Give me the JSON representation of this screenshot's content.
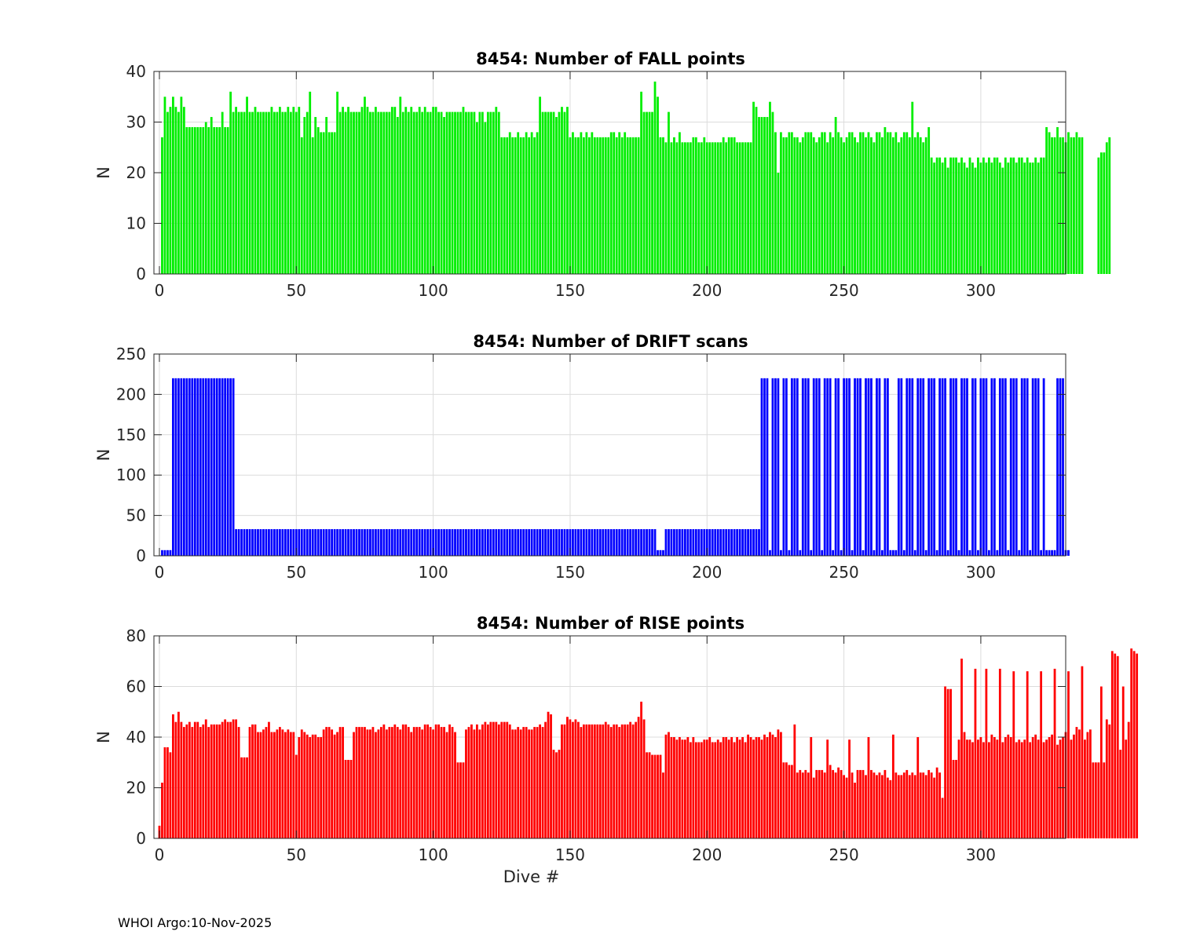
{
  "chart_data": [
    {
      "type": "bar",
      "title": "8454: Number of FALL points",
      "xlabel": "",
      "ylabel": "N",
      "color": "#00ee00",
      "xlim": [
        -2,
        331
      ],
      "ylim": [
        0,
        40
      ],
      "xticks": [
        "0",
        "50",
        "100",
        "150",
        "200",
        "250",
        "300"
      ],
      "yticks": [
        "0",
        "10",
        "20",
        "30",
        "40"
      ],
      "x_start": 1,
      "values": [
        27,
        35,
        32,
        33,
        35,
        33,
        32,
        35,
        33,
        29,
        29,
        29,
        29,
        29,
        29,
        29,
        30,
        29,
        31,
        29,
        29,
        29,
        32,
        29,
        29,
        36,
        32,
        33,
        32,
        32,
        32,
        35,
        32,
        32,
        33,
        32,
        32,
        32,
        32,
        32,
        33,
        32,
        32,
        33,
        32,
        32,
        33,
        32,
        33,
        32,
        33,
        27,
        31,
        32,
        36,
        27,
        31,
        29,
        28,
        28,
        31,
        28,
        28,
        28,
        36,
        32,
        33,
        32,
        33,
        32,
        32,
        32,
        32,
        33,
        35,
        33,
        32,
        32,
        33,
        32,
        32,
        32,
        32,
        32,
        33,
        33,
        31,
        35,
        32,
        33,
        32,
        33,
        32,
        32,
        33,
        32,
        33,
        32,
        32,
        33,
        33,
        32,
        32,
        31,
        32,
        32,
        32,
        32,
        32,
        32,
        33,
        32,
        32,
        32,
        32,
        30,
        32,
        32,
        30,
        32,
        32,
        32,
        33,
        32,
        27,
        27,
        27,
        28,
        27,
        27,
        28,
        27,
        27,
        28,
        27,
        28,
        27,
        28,
        35,
        32,
        32,
        32,
        32,
        32,
        31,
        32,
        33,
        32,
        33,
        27,
        28,
        27,
        27,
        28,
        27,
        28,
        27,
        28,
        27,
        27,
        27,
        27,
        27,
        27,
        28,
        28,
        27,
        28,
        27,
        28,
        27,
        27,
        27,
        27,
        27,
        36,
        32,
        32,
        32,
        32,
        38,
        35,
        27,
        27,
        26,
        32,
        26,
        27,
        26,
        28,
        26,
        26,
        26,
        26,
        27,
        27,
        26,
        26,
        27,
        26,
        26,
        26,
        26,
        26,
        26,
        27,
        26,
        27,
        27,
        27,
        26,
        26,
        26,
        26,
        26,
        26,
        34,
        33,
        31,
        31,
        31,
        31,
        34,
        32,
        28,
        20,
        28,
        27,
        27,
        28,
        28,
        27,
        27,
        26,
        27,
        28,
        28,
        28,
        27,
        26,
        27,
        28,
        28,
        26,
        28,
        27,
        31,
        28,
        27,
        26,
        27,
        28,
        28,
        27,
        26,
        28,
        28,
        27,
        28,
        27,
        26,
        28,
        28,
        27,
        29,
        28,
        28,
        27,
        28,
        26,
        27,
        28,
        28,
        27,
        34,
        27,
        28,
        27,
        26,
        27,
        29,
        23,
        22,
        23,
        23,
        22,
        23,
        21,
        23,
        23,
        23,
        22,
        23,
        22,
        21,
        23,
        22,
        21,
        23,
        22,
        23,
        22,
        23,
        22,
        23,
        23,
        22,
        21,
        23,
        22,
        23,
        23,
        22,
        23,
        23,
        22,
        23,
        22,
        22,
        23,
        22,
        23,
        23,
        29,
        28,
        27,
        27,
        29,
        27,
        27,
        26,
        28,
        27,
        27,
        28,
        27,
        27,
        0,
        0,
        0,
        0,
        0,
        23,
        24,
        24,
        26,
        27
      ]
    },
    {
      "type": "bar",
      "title": "8454: Number of DRIFT scans",
      "xlabel": "",
      "ylabel": "N",
      "color": "#0000ff",
      "xlim": [
        -2,
        331
      ],
      "ylim": [
        0,
        250
      ],
      "xticks": [
        "0",
        "50",
        "100",
        "150",
        "200",
        "250",
        "300"
      ],
      "yticks": [
        "0",
        "50",
        "100",
        "150",
        "200",
        "250"
      ],
      "x_start": 1,
      "values": [
        7,
        7,
        7,
        7,
        220,
        220,
        220,
        220,
        220,
        220,
        220,
        220,
        220,
        220,
        220,
        220,
        220,
        220,
        220,
        220,
        220,
        220,
        220,
        220,
        220,
        220,
        220,
        33,
        33,
        33,
        33,
        33,
        33,
        33,
        33,
        33,
        33,
        33,
        33,
        33,
        33,
        33,
        33,
        33,
        33,
        33,
        33,
        33,
        33,
        33,
        33,
        33,
        33,
        33,
        33,
        33,
        33,
        33,
        33,
        33,
        33,
        33,
        33,
        33,
        33,
        33,
        33,
        33,
        33,
        33,
        33,
        33,
        33,
        33,
        33,
        33,
        33,
        33,
        33,
        33,
        33,
        33,
        33,
        33,
        33,
        33,
        33,
        33,
        33,
        33,
        33,
        33,
        33,
        33,
        33,
        33,
        33,
        33,
        33,
        33,
        33,
        33,
        33,
        33,
        33,
        33,
        33,
        33,
        33,
        33,
        33,
        33,
        33,
        33,
        33,
        33,
        33,
        33,
        33,
        33,
        33,
        33,
        33,
        33,
        33,
        33,
        33,
        33,
        33,
        33,
        33,
        33,
        33,
        33,
        33,
        33,
        33,
        33,
        33,
        33,
        33,
        33,
        33,
        33,
        33,
        33,
        33,
        33,
        33,
        33,
        33,
        33,
        33,
        33,
        33,
        33,
        33,
        33,
        33,
        33,
        33,
        33,
        33,
        33,
        33,
        33,
        33,
        33,
        33,
        33,
        33,
        33,
        33,
        33,
        33,
        33,
        33,
        33,
        33,
        33,
        33,
        7,
        7,
        7,
        33,
        33,
        33,
        33,
        33,
        33,
        33,
        33,
        33,
        33,
        33,
        33,
        33,
        33,
        33,
        33,
        33,
        33,
        33,
        33,
        33,
        33,
        33,
        33,
        33,
        33,
        33,
        33,
        33,
        33,
        33,
        33,
        33,
        33,
        33,
        220,
        220,
        220,
        7,
        220,
        220,
        220,
        7,
        220,
        220,
        7,
        220,
        220,
        220,
        7,
        220,
        220,
        220,
        7,
        220,
        220,
        220,
        7,
        220,
        220,
        220,
        7,
        220,
        220,
        7,
        220,
        220,
        220,
        7,
        220,
        220,
        220,
        7,
        220,
        220,
        220,
        7,
        220,
        220,
        7,
        220,
        220,
        7,
        7,
        7,
        220,
        220,
        7,
        220,
        220,
        220,
        7,
        220,
        220,
        220,
        7,
        220,
        220,
        220,
        7,
        220,
        220,
        220,
        7,
        220,
        220,
        220,
        7,
        220,
        220,
        220,
        7,
        220,
        220,
        7,
        220,
        220,
        220,
        7,
        220,
        220,
        7,
        220,
        220,
        220,
        7,
        220,
        220,
        220,
        7,
        220,
        220,
        220,
        7,
        220,
        220,
        220,
        7,
        220,
        7,
        7,
        7,
        7,
        220,
        220,
        220,
        7,
        7
      ]
    },
    {
      "type": "bar",
      "title": "8454: Number of RISE points",
      "xlabel": "Dive #",
      "ylabel": "N",
      "color": "#ff0000",
      "xlim": [
        -2,
        331
      ],
      "ylim": [
        0,
        80
      ],
      "xticks": [
        "0",
        "50",
        "100",
        "150",
        "200",
        "250",
        "300"
      ],
      "yticks": [
        "0",
        "20",
        "40",
        "60",
        "80"
      ],
      "x_start": 0,
      "values": [
        5,
        22,
        36,
        36,
        34,
        49,
        46,
        50,
        46,
        44,
        45,
        46,
        44,
        46,
        46,
        44,
        45,
        47,
        44,
        45,
        45,
        45,
        45,
        46,
        47,
        46,
        46,
        47,
        47,
        44,
        32,
        32,
        32,
        44,
        45,
        45,
        42,
        42,
        43,
        44,
        46,
        42,
        42,
        43,
        44,
        43,
        42,
        43,
        42,
        42,
        33,
        40,
        43,
        42,
        41,
        40,
        41,
        41,
        40,
        40,
        43,
        44,
        44,
        43,
        41,
        42,
        44,
        44,
        31,
        31,
        31,
        42,
        44,
        44,
        44,
        44,
        43,
        43,
        44,
        42,
        43,
        44,
        45,
        43,
        44,
        44,
        45,
        44,
        43,
        45,
        45,
        44,
        42,
        44,
        44,
        44,
        43,
        45,
        45,
        44,
        43,
        45,
        45,
        44,
        44,
        42,
        45,
        44,
        42,
        30,
        30,
        30,
        43,
        44,
        45,
        43,
        45,
        43,
        45,
        46,
        45,
        46,
        46,
        46,
        45,
        46,
        46,
        46,
        45,
        43,
        43,
        44,
        43,
        44,
        44,
        43,
        43,
        44,
        44,
        45,
        44,
        46,
        50,
        49,
        35,
        34,
        35,
        45,
        45,
        48,
        47,
        46,
        47,
        46,
        44,
        45,
        45,
        45,
        45,
        45,
        45,
        45,
        45,
        46,
        45,
        44,
        45,
        45,
        44,
        45,
        45,
        45,
        46,
        45,
        46,
        48,
        54,
        47,
        34,
        34,
        33,
        33,
        33,
        33,
        26,
        41,
        42,
        40,
        40,
        39,
        40,
        39,
        39,
        40,
        38,
        40,
        38,
        38,
        38,
        39,
        39,
        40,
        38,
        38,
        39,
        38,
        40,
        40,
        39,
        40,
        38,
        40,
        39,
        40,
        38,
        41,
        40,
        39,
        40,
        40,
        39,
        41,
        40,
        42,
        41,
        40,
        43,
        42,
        30,
        30,
        29,
        29,
        45,
        26,
        27,
        26,
        27,
        26,
        40,
        24,
        27,
        27,
        27,
        26,
        39,
        29,
        27,
        26,
        28,
        27,
        25,
        24,
        39,
        26,
        22,
        27,
        27,
        27,
        25,
        40,
        27,
        26,
        25,
        26,
        25,
        27,
        24,
        23,
        41,
        26,
        25,
        25,
        26,
        27,
        25,
        26,
        25,
        40,
        26,
        26,
        25,
        27,
        26,
        24,
        28,
        26,
        16,
        60,
        59,
        59,
        31,
        31,
        39,
        71,
        42,
        39,
        39,
        38,
        67,
        39,
        40,
        38,
        67,
        38,
        41,
        40,
        39,
        67,
        38,
        40,
        41,
        40,
        66,
        38,
        39,
        38,
        39,
        66,
        38,
        40,
        41,
        39,
        66,
        38,
        39,
        40,
        41,
        67,
        37,
        39,
        40,
        42,
        66,
        39,
        41,
        44,
        43,
        68,
        39,
        42,
        43,
        30,
        30,
        30,
        60,
        30,
        47,
        45,
        74,
        73,
        72,
        35,
        60,
        39,
        46,
        75,
        74,
        73
      ]
    }
  ],
  "footer": {
    "text": "WHOI Argo:10-Nov-2025"
  }
}
